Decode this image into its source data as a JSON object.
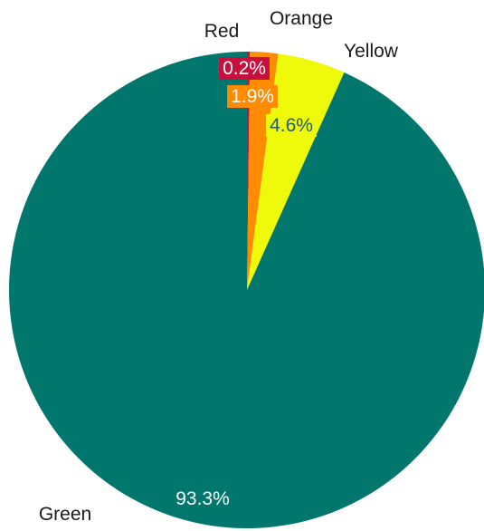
{
  "chart_data": {
    "type": "pie",
    "title": "",
    "slices": [
      {
        "label": "Red",
        "value": 0.2,
        "display": "0.2%",
        "color": "#c8103f",
        "text_color": "#ffffff"
      },
      {
        "label": "Orange",
        "value": 1.9,
        "display": "1.9%",
        "color": "#ff8c00",
        "text_color": "#ffffff"
      },
      {
        "label": "Yellow",
        "value": 4.6,
        "display": "4.6%",
        "color": "#eefa0a",
        "text_color": "#1f5a73"
      },
      {
        "label": "Green",
        "value": 93.3,
        "display": "93.3%",
        "color": "#00766c",
        "text_color": "#ffffff"
      }
    ],
    "start_angle": "12 o'clock",
    "direction": "clockwise",
    "legend": "none"
  }
}
